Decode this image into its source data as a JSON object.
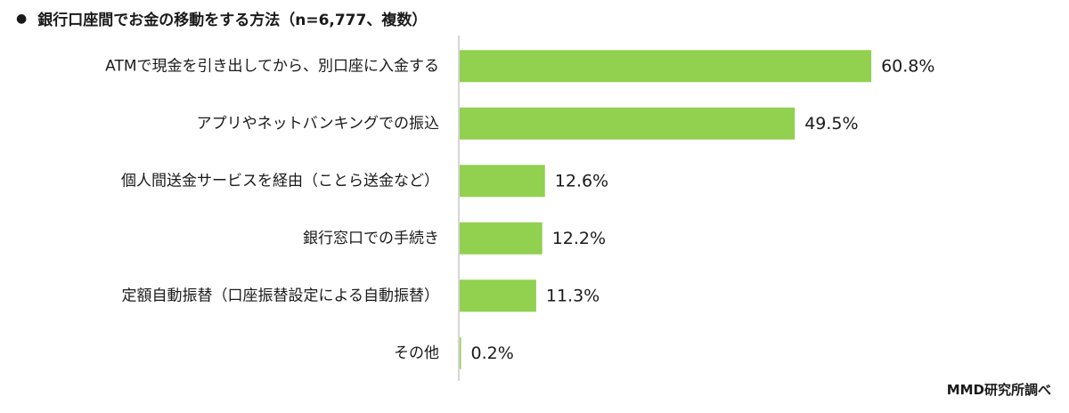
{
  "header": {
    "bullet": "●",
    "title": "銀行口座間でお金の移動をする方法（n=6,777、複数）"
  },
  "source": "MMD研究所調べ",
  "colors": {
    "bar": "#92d050",
    "axis": "#c8c8c8",
    "text": "#1a1a1a"
  },
  "chart_data": {
    "type": "bar",
    "orientation": "horizontal",
    "categories": [
      "ATMで現金を引き出してから、別口座に入金する",
      "アプリやネットバンキングでの振込",
      "個人間送金サービスを経由（ことら送金など）",
      "銀行窓口での手続き",
      "定額自動振替（口座振替設定による自動振替）",
      "その他"
    ],
    "values": [
      60.8,
      49.5,
      12.6,
      12.2,
      11.3,
      0.2
    ],
    "value_labels": [
      "60.8%",
      "49.5%",
      "12.6%",
      "12.2%",
      "11.3%",
      "0.2%"
    ],
    "xlim": [
      0,
      100
    ],
    "grid": false
  }
}
